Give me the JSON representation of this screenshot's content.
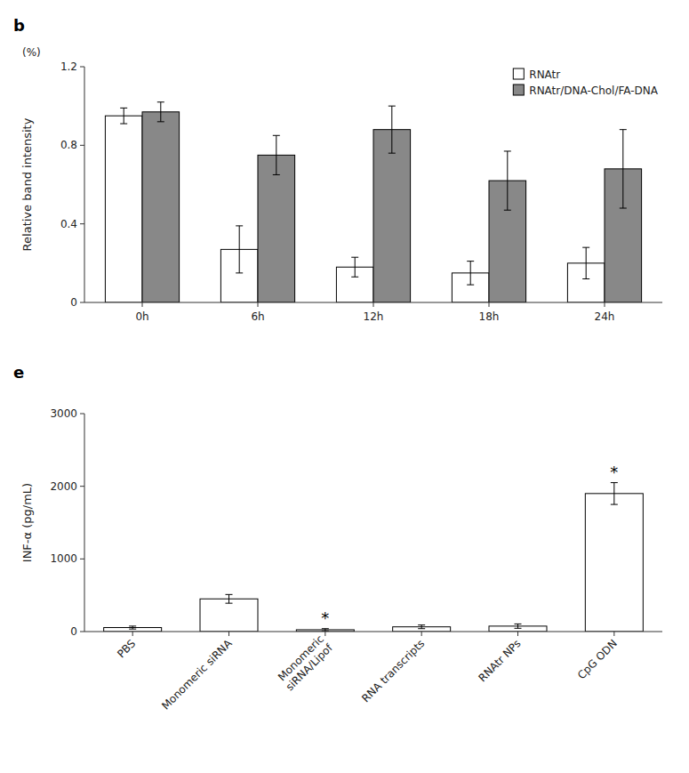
{
  "chart_data": [
    {
      "type": "bar",
      "title": "b",
      "categories": [
        "0h",
        "6h",
        "12h",
        "18h",
        "24h"
      ],
      "series": [
        {
          "name": "RNAtr",
          "color": "#ffffff",
          "values": [
            0.95,
            0.27,
            0.18,
            0.15,
            0.2
          ],
          "errors": [
            0.04,
            0.12,
            0.05,
            0.06,
            0.08
          ]
        },
        {
          "name": "RNAtr/DNA-Chol/FA-DNA",
          "color": "#888888",
          "values": [
            0.97,
            0.75,
            0.88,
            0.62,
            0.68
          ],
          "errors": [
            0.05,
            0.1,
            0.12,
            0.15,
            0.2
          ]
        }
      ],
      "ylabel": "Relative band intensity",
      "annotations": [
        {
          "label": "(%)"
        }
      ],
      "ylim": [
        0,
        1.2
      ],
      "yticks": [
        0,
        0.4,
        0.8,
        1.2
      ],
      "legend": "upper right",
      "grid": false
    },
    {
      "type": "bar",
      "title": "e",
      "categories": [
        "PBS",
        "Monomeric siRNA",
        "Monomeric\nsiRNA/Lipof",
        "RNA transcripts",
        "RNAtr NPs",
        "CpG ODN"
      ],
      "values": [
        55,
        450,
        25,
        65,
        75,
        1900
      ],
      "errors": [
        20,
        60,
        15,
        25,
        30,
        150
      ],
      "color": "#ffffff",
      "ylabel": "INF-α (pg/mL)",
      "annotations": [
        {
          "label": "*",
          "index": 2
        },
        {
          "label": "*",
          "index": 5
        }
      ],
      "ylim": [
        0,
        3000
      ],
      "yticks": [
        0,
        1000,
        2000,
        3000
      ],
      "grid": false
    }
  ]
}
